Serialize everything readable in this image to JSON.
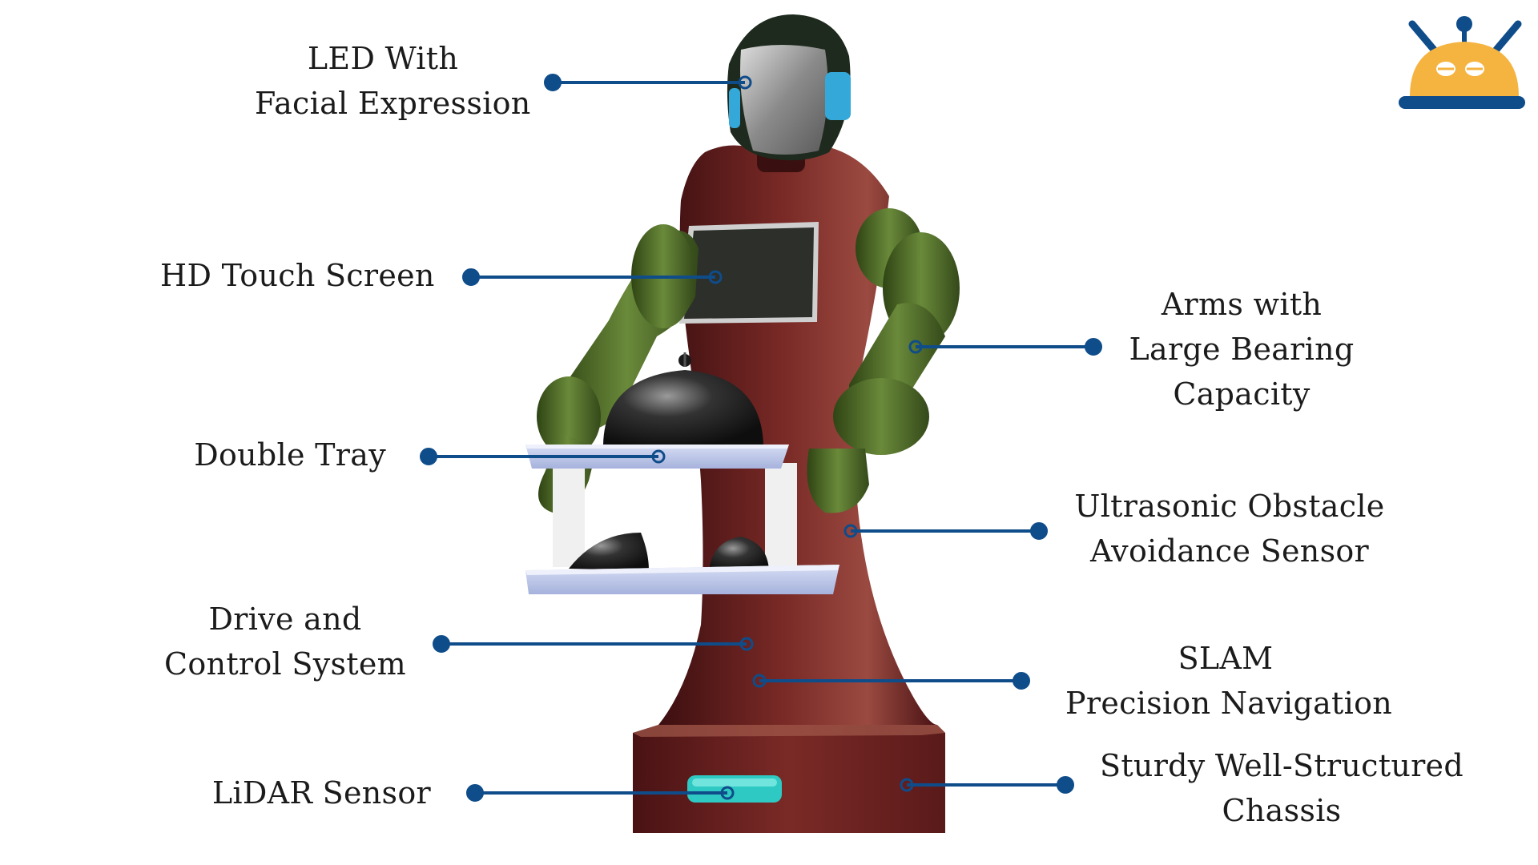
{
  "labels": {
    "led": {
      "lines": [
        "LED With",
        "Facial Expression"
      ]
    },
    "touch": {
      "lines": [
        "HD Touch Screen"
      ]
    },
    "tray": {
      "lines": [
        "Double Tray"
      ]
    },
    "drive": {
      "lines": [
        "Drive and",
        "Control System"
      ]
    },
    "lidar": {
      "lines": [
        "LiDAR Sensor"
      ]
    },
    "arms": {
      "lines": [
        "Arms with",
        "Large Bearing",
        "Capacity"
      ]
    },
    "ultra": {
      "lines": [
        "Ultrasonic Obstacle",
        "Avoidance Sensor"
      ]
    },
    "slam": {
      "lines": [
        "SLAM",
        "Precision Navigation"
      ]
    },
    "chassis": {
      "lines": [
        "Sturdy Well-Structured",
        "Chassis"
      ]
    }
  },
  "colors": {
    "leader": "#0f4c8a",
    "body": "#6b1e1e",
    "arm": "#4f6e25",
    "tray": "#b9c4e8",
    "screen": "#2c2f2a",
    "lidar_window": "#2fc9c3",
    "logo_dome": "#f5b340",
    "logo_base": "#0f4c8a"
  },
  "icons": {
    "logo": "robot-dome-icon"
  }
}
